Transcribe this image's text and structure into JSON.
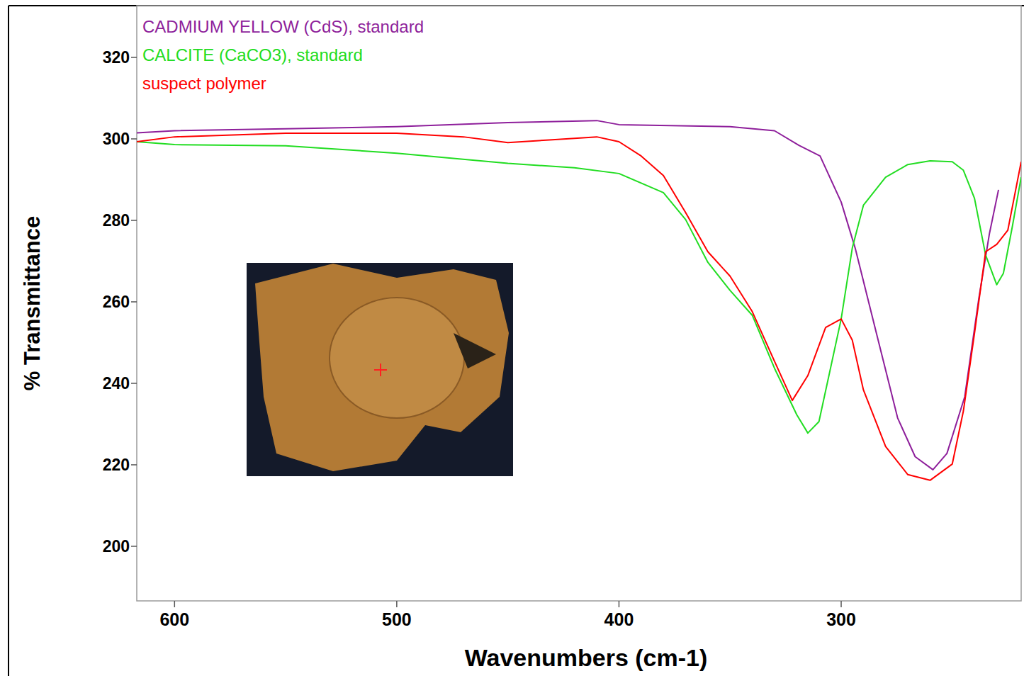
{
  "chart_data": {
    "type": "line",
    "x_label": "Wavenumbers (cm-1)",
    "y_label": "% Transmittance",
    "xlim": [
      617,
      219
    ],
    "xticks": [
      600,
      500,
      400,
      300
    ],
    "ylim": [
      186.6,
      332.7
    ],
    "yticks": [
      200,
      220,
      240,
      260,
      280,
      300,
      320
    ],
    "legend": "top-left",
    "grid": false,
    "series": [
      {
        "name": "CADMIUM YELLOW (CdS), standard",
        "color": "#8e1f9b",
        "x": [
          617,
          600,
          550,
          500,
          450,
          410,
          400,
          350,
          330,
          319,
          309.5,
          300,
          293.7,
          284,
          274.6,
          266.7,
          258.7,
          252.4,
          244.4,
          238,
          233.3,
          229.2
        ],
        "values": [
          301.5,
          302,
          302.5,
          303,
          304,
          304.5,
          303.5,
          303,
          302,
          298.4,
          295.8,
          284.5,
          273.2,
          252,
          231.5,
          222,
          218.8,
          222.8,
          236.7,
          261,
          276.7,
          287.5
        ]
      },
      {
        "name": "CALCITE (CaCO3), standard",
        "color": "#22dd22",
        "x": [
          617,
          600,
          550,
          500,
          450,
          420,
          400,
          380,
          370,
          360,
          350,
          340,
          330,
          320,
          315,
          310,
          300,
          295,
          290,
          280,
          270,
          260,
          250,
          245,
          240,
          235,
          230,
          227,
          223,
          219
        ],
        "values": [
          299.3,
          298.6,
          298.3,
          296.5,
          294,
          292.9,
          291.5,
          286.8,
          280.2,
          269.7,
          262.8,
          256.7,
          243.7,
          232.3,
          227.8,
          230.6,
          255.8,
          273.2,
          283.7,
          290.6,
          293.7,
          294.6,
          294.4,
          292.3,
          285.4,
          271.5,
          264.2,
          267,
          278.4,
          290.6
        ]
      },
      {
        "name": "suspect polymer",
        "color": "#ff0000",
        "x": [
          617,
          600,
          550,
          500,
          470,
          450,
          430,
          410,
          400,
          390,
          380,
          370,
          360,
          350,
          340,
          330,
          322,
          315,
          307,
          300,
          295,
          290,
          280,
          270,
          260,
          250,
          245,
          240,
          235,
          230,
          225,
          219
        ],
        "values": [
          299.3,
          300.5,
          301.4,
          301.4,
          300.5,
          299.1,
          299.8,
          300.5,
          299.3,
          295.8,
          291,
          281.9,
          272.3,
          266.3,
          257.6,
          245.4,
          235.8,
          241.9,
          253.7,
          255.8,
          250.6,
          238.4,
          224.5,
          217.6,
          216.2,
          220.2,
          233.2,
          252.3,
          272.3,
          274.1,
          277.6,
          294.4
        ]
      }
    ]
  }
}
